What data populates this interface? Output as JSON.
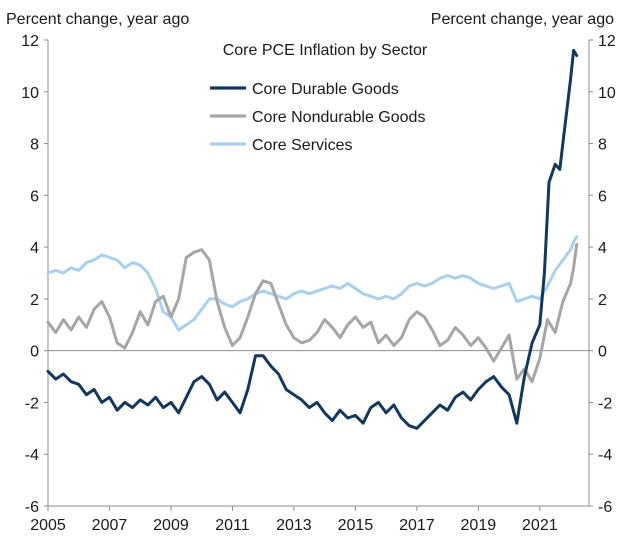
{
  "chart_data": {
    "type": "line",
    "title": "Core PCE Inflation by Sector",
    "ylabel_left": "Percent change, year ago",
    "ylabel_right": "Percent change, year ago",
    "xlabel": "",
    "ylim": [
      -6,
      12
    ],
    "yticks": [
      -6,
      -4,
      -2,
      0,
      2,
      4,
      6,
      8,
      10,
      12
    ],
    "xlim": [
      2005,
      2022.6
    ],
    "xticks": [
      2005,
      2007,
      2009,
      2011,
      2013,
      2015,
      2017,
      2019,
      2021
    ],
    "zero_line": true,
    "legend_position": "top-center",
    "series": [
      {
        "name": "Core Durable Goods",
        "color": "#14375e",
        "points": [
          [
            2005.0,
            -0.8
          ],
          [
            2005.25,
            -1.1
          ],
          [
            2005.5,
            -0.9
          ],
          [
            2005.75,
            -1.2
          ],
          [
            2006.0,
            -1.3
          ],
          [
            2006.25,
            -1.7
          ],
          [
            2006.5,
            -1.5
          ],
          [
            2006.75,
            -2.0
          ],
          [
            2007.0,
            -1.8
          ],
          [
            2007.25,
            -2.3
          ],
          [
            2007.5,
            -2.0
          ],
          [
            2007.75,
            -2.2
          ],
          [
            2008.0,
            -1.9
          ],
          [
            2008.25,
            -2.1
          ],
          [
            2008.5,
            -1.8
          ],
          [
            2008.75,
            -2.2
          ],
          [
            2009.0,
            -2.0
          ],
          [
            2009.25,
            -2.4
          ],
          [
            2009.5,
            -1.8
          ],
          [
            2009.75,
            -1.2
          ],
          [
            2010.0,
            -1.0
          ],
          [
            2010.25,
            -1.3
          ],
          [
            2010.5,
            -1.9
          ],
          [
            2010.75,
            -1.6
          ],
          [
            2011.0,
            -2.0
          ],
          [
            2011.25,
            -2.4
          ],
          [
            2011.5,
            -1.5
          ],
          [
            2011.75,
            -0.2
          ],
          [
            2012.0,
            -0.2
          ],
          [
            2012.25,
            -0.6
          ],
          [
            2012.5,
            -0.9
          ],
          [
            2012.75,
            -1.5
          ],
          [
            2013.0,
            -1.7
          ],
          [
            2013.25,
            -1.9
          ],
          [
            2013.5,
            -2.2
          ],
          [
            2013.75,
            -2.0
          ],
          [
            2014.0,
            -2.4
          ],
          [
            2014.25,
            -2.7
          ],
          [
            2014.5,
            -2.3
          ],
          [
            2014.75,
            -2.6
          ],
          [
            2015.0,
            -2.5
          ],
          [
            2015.25,
            -2.8
          ],
          [
            2015.5,
            -2.2
          ],
          [
            2015.75,
            -2.0
          ],
          [
            2016.0,
            -2.4
          ],
          [
            2016.25,
            -2.1
          ],
          [
            2016.5,
            -2.6
          ],
          [
            2016.75,
            -2.9
          ],
          [
            2017.0,
            -3.0
          ],
          [
            2017.25,
            -2.7
          ],
          [
            2017.5,
            -2.4
          ],
          [
            2017.75,
            -2.1
          ],
          [
            2018.0,
            -2.3
          ],
          [
            2018.25,
            -1.8
          ],
          [
            2018.5,
            -1.6
          ],
          [
            2018.75,
            -1.9
          ],
          [
            2019.0,
            -1.5
          ],
          [
            2019.25,
            -1.2
          ],
          [
            2019.5,
            -1.0
          ],
          [
            2019.75,
            -1.4
          ],
          [
            2020.0,
            -1.7
          ],
          [
            2020.25,
            -2.8
          ],
          [
            2020.5,
            -1.0
          ],
          [
            2020.75,
            0.3
          ],
          [
            2021.0,
            1.0
          ],
          [
            2021.15,
            3.0
          ],
          [
            2021.3,
            6.5
          ],
          [
            2021.5,
            7.2
          ],
          [
            2021.65,
            7.0
          ],
          [
            2021.8,
            8.5
          ],
          [
            2022.0,
            10.5
          ],
          [
            2022.1,
            11.6
          ],
          [
            2022.2,
            11.4
          ]
        ]
      },
      {
        "name": "Core Nondurable Goods",
        "color": "#a6a6a6",
        "points": [
          [
            2005.0,
            1.1
          ],
          [
            2005.25,
            0.7
          ],
          [
            2005.5,
            1.2
          ],
          [
            2005.75,
            0.8
          ],
          [
            2006.0,
            1.3
          ],
          [
            2006.25,
            0.9
          ],
          [
            2006.5,
            1.6
          ],
          [
            2006.75,
            1.9
          ],
          [
            2007.0,
            1.3
          ],
          [
            2007.25,
            0.3
          ],
          [
            2007.5,
            0.1
          ],
          [
            2007.75,
            0.7
          ],
          [
            2008.0,
            1.5
          ],
          [
            2008.25,
            1.0
          ],
          [
            2008.5,
            1.9
          ],
          [
            2008.75,
            2.1
          ],
          [
            2009.0,
            1.3
          ],
          [
            2009.25,
            2.0
          ],
          [
            2009.5,
            3.6
          ],
          [
            2009.75,
            3.8
          ],
          [
            2010.0,
            3.9
          ],
          [
            2010.25,
            3.5
          ],
          [
            2010.5,
            1.9
          ],
          [
            2010.75,
            0.9
          ],
          [
            2011.0,
            0.2
          ],
          [
            2011.25,
            0.5
          ],
          [
            2011.5,
            1.3
          ],
          [
            2011.75,
            2.2
          ],
          [
            2012.0,
            2.7
          ],
          [
            2012.25,
            2.6
          ],
          [
            2012.5,
            1.8
          ],
          [
            2012.75,
            1.0
          ],
          [
            2013.0,
            0.5
          ],
          [
            2013.25,
            0.3
          ],
          [
            2013.5,
            0.4
          ],
          [
            2013.75,
            0.7
          ],
          [
            2014.0,
            1.2
          ],
          [
            2014.25,
            0.9
          ],
          [
            2014.5,
            0.5
          ],
          [
            2014.75,
            1.0
          ],
          [
            2015.0,
            1.3
          ],
          [
            2015.25,
            0.9
          ],
          [
            2015.5,
            1.1
          ],
          [
            2015.75,
            0.3
          ],
          [
            2016.0,
            0.6
          ],
          [
            2016.25,
            0.2
          ],
          [
            2016.5,
            0.5
          ],
          [
            2016.75,
            1.2
          ],
          [
            2017.0,
            1.5
          ],
          [
            2017.25,
            1.3
          ],
          [
            2017.5,
            0.8
          ],
          [
            2017.75,
            0.2
          ],
          [
            2018.0,
            0.4
          ],
          [
            2018.25,
            0.9
          ],
          [
            2018.5,
            0.6
          ],
          [
            2018.75,
            0.2
          ],
          [
            2019.0,
            0.5
          ],
          [
            2019.25,
            0.1
          ],
          [
            2019.5,
            -0.4
          ],
          [
            2019.75,
            0.1
          ],
          [
            2020.0,
            0.6
          ],
          [
            2020.25,
            -1.1
          ],
          [
            2020.5,
            -0.7
          ],
          [
            2020.75,
            -1.2
          ],
          [
            2021.0,
            -0.3
          ],
          [
            2021.25,
            1.2
          ],
          [
            2021.5,
            0.7
          ],
          [
            2021.75,
            1.9
          ],
          [
            2022.0,
            2.6
          ],
          [
            2022.1,
            3.2
          ],
          [
            2022.2,
            4.1
          ]
        ]
      },
      {
        "name": "Core Services",
        "color": "#a9d0ec",
        "points": [
          [
            2005.0,
            3.0
          ],
          [
            2005.25,
            3.1
          ],
          [
            2005.5,
            3.0
          ],
          [
            2005.75,
            3.2
          ],
          [
            2006.0,
            3.1
          ],
          [
            2006.25,
            3.4
          ],
          [
            2006.5,
            3.5
          ],
          [
            2006.75,
            3.7
          ],
          [
            2007.0,
            3.6
          ],
          [
            2007.25,
            3.5
          ],
          [
            2007.5,
            3.2
          ],
          [
            2007.75,
            3.4
          ],
          [
            2008.0,
            3.3
          ],
          [
            2008.25,
            3.0
          ],
          [
            2008.5,
            2.4
          ],
          [
            2008.75,
            1.5
          ],
          [
            2009.0,
            1.3
          ],
          [
            2009.25,
            0.8
          ],
          [
            2009.5,
            1.0
          ],
          [
            2009.75,
            1.2
          ],
          [
            2010.0,
            1.6
          ],
          [
            2010.25,
            2.0
          ],
          [
            2010.5,
            2.0
          ],
          [
            2010.75,
            1.8
          ],
          [
            2011.0,
            1.7
          ],
          [
            2011.25,
            1.9
          ],
          [
            2011.5,
            2.0
          ],
          [
            2011.75,
            2.2
          ],
          [
            2012.0,
            2.3
          ],
          [
            2012.25,
            2.2
          ],
          [
            2012.5,
            2.1
          ],
          [
            2012.75,
            2.0
          ],
          [
            2013.0,
            2.2
          ],
          [
            2013.25,
            2.3
          ],
          [
            2013.5,
            2.2
          ],
          [
            2013.75,
            2.3
          ],
          [
            2014.0,
            2.4
          ],
          [
            2014.25,
            2.5
          ],
          [
            2014.5,
            2.4
          ],
          [
            2014.75,
            2.6
          ],
          [
            2015.0,
            2.4
          ],
          [
            2015.25,
            2.2
          ],
          [
            2015.5,
            2.1
          ],
          [
            2015.75,
            2.0
          ],
          [
            2016.0,
            2.1
          ],
          [
            2016.25,
            2.0
          ],
          [
            2016.5,
            2.2
          ],
          [
            2016.75,
            2.5
          ],
          [
            2017.0,
            2.6
          ],
          [
            2017.25,
            2.5
          ],
          [
            2017.5,
            2.6
          ],
          [
            2017.75,
            2.8
          ],
          [
            2018.0,
            2.9
          ],
          [
            2018.25,
            2.8
          ],
          [
            2018.5,
            2.9
          ],
          [
            2018.75,
            2.8
          ],
          [
            2019.0,
            2.6
          ],
          [
            2019.25,
            2.5
          ],
          [
            2019.5,
            2.4
          ],
          [
            2019.75,
            2.5
          ],
          [
            2020.0,
            2.6
          ],
          [
            2020.25,
            1.9
          ],
          [
            2020.5,
            2.0
          ],
          [
            2020.75,
            2.1
          ],
          [
            2021.0,
            2.0
          ],
          [
            2021.25,
            2.5
          ],
          [
            2021.5,
            3.1
          ],
          [
            2021.75,
            3.5
          ],
          [
            2022.0,
            3.9
          ],
          [
            2022.1,
            4.2
          ],
          [
            2022.2,
            4.4
          ]
        ]
      }
    ]
  }
}
